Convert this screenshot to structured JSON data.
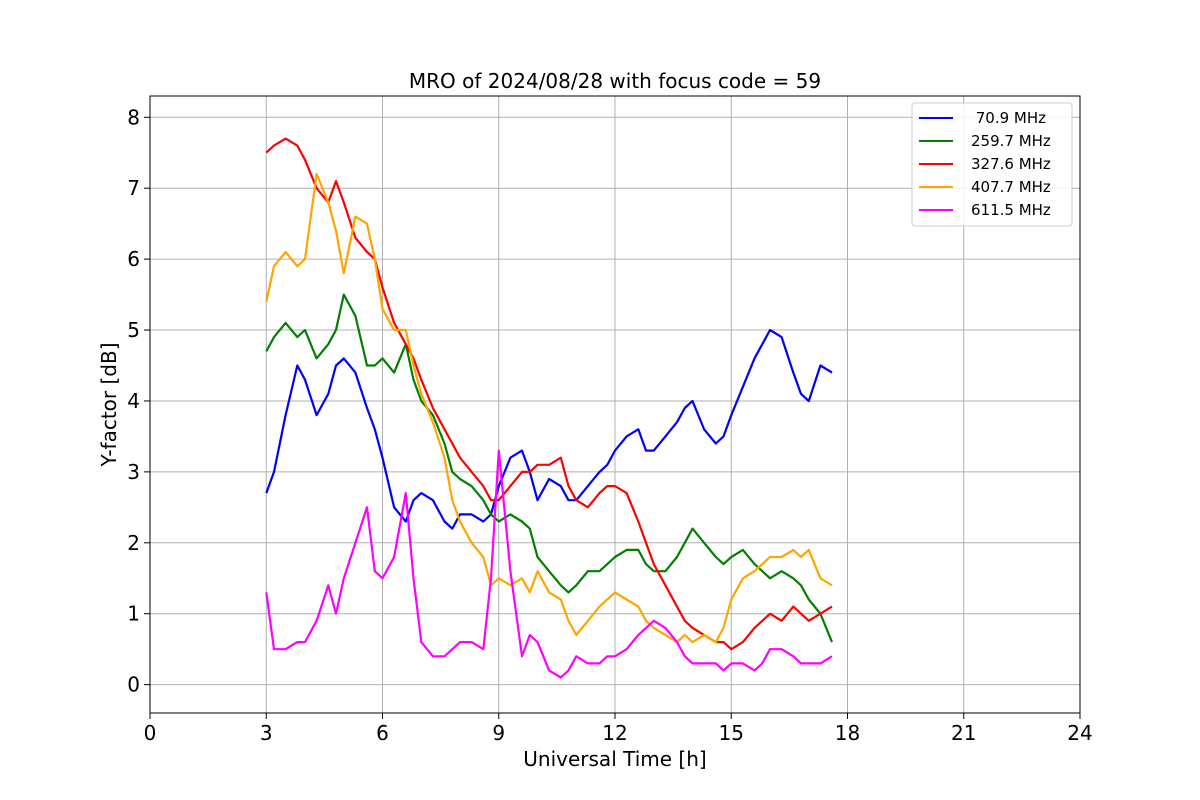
{
  "chart_data": {
    "type": "line",
    "title": "MRO of 2024/08/28 with focus code = 59",
    "xlabel": "Universal Time [h]",
    "ylabel": "Y-factor [dB]",
    "xlim": [
      0,
      24
    ],
    "ylim": [
      -0.4,
      8.3
    ],
    "xticks": [
      0,
      3,
      6,
      9,
      12,
      15,
      18,
      21,
      24
    ],
    "yticks": [
      0,
      1,
      2,
      3,
      4,
      5,
      6,
      7,
      8
    ],
    "grid": true,
    "legend_position": "top-right",
    "series": [
      {
        "name": " 70.9 MHz",
        "color": "#0000ff",
        "x": [
          3.0,
          3.2,
          3.5,
          3.8,
          4.0,
          4.3,
          4.6,
          4.8,
          5.0,
          5.3,
          5.6,
          5.8,
          6.0,
          6.3,
          6.6,
          6.8,
          7.0,
          7.3,
          7.6,
          7.8,
          8.0,
          8.3,
          8.6,
          8.8,
          9.0,
          9.3,
          9.6,
          9.8,
          10.0,
          10.3,
          10.6,
          10.8,
          11.0,
          11.3,
          11.6,
          11.8,
          12.0,
          12.3,
          12.6,
          12.8,
          13.0,
          13.3,
          13.6,
          13.8,
          14.0,
          14.3,
          14.6,
          14.8,
          15.0,
          15.3,
          15.6,
          15.8,
          16.0,
          16.3,
          16.6,
          16.8,
          17.0,
          17.3,
          17.6
        ],
        "y": [
          2.7,
          3.0,
          3.8,
          4.5,
          4.3,
          3.8,
          4.1,
          4.5,
          4.6,
          4.4,
          3.9,
          3.6,
          3.2,
          2.5,
          2.3,
          2.6,
          2.7,
          2.6,
          2.3,
          2.2,
          2.4,
          2.4,
          2.3,
          2.4,
          2.8,
          3.2,
          3.3,
          3.0,
          2.6,
          2.9,
          2.8,
          2.6,
          2.6,
          2.8,
          3.0,
          3.1,
          3.3,
          3.5,
          3.6,
          3.3,
          3.3,
          3.5,
          3.7,
          3.9,
          4.0,
          3.6,
          3.4,
          3.5,
          3.8,
          4.2,
          4.6,
          4.8,
          5.0,
          4.9,
          4.4,
          4.1,
          4.0,
          4.5,
          4.4
        ]
      },
      {
        "name": "259.7 MHz",
        "color": "#008000",
        "x": [
          3.0,
          3.2,
          3.5,
          3.8,
          4.0,
          4.3,
          4.6,
          4.8,
          5.0,
          5.3,
          5.6,
          5.8,
          6.0,
          6.3,
          6.6,
          6.8,
          7.0,
          7.3,
          7.6,
          7.8,
          8.0,
          8.3,
          8.6,
          8.8,
          9.0,
          9.3,
          9.6,
          9.8,
          10.0,
          10.3,
          10.6,
          10.8,
          11.0,
          11.3,
          11.6,
          11.8,
          12.0,
          12.3,
          12.6,
          12.8,
          13.0,
          13.3,
          13.6,
          13.8,
          14.0,
          14.3,
          14.6,
          14.8,
          15.0,
          15.3,
          15.6,
          15.8,
          16.0,
          16.3,
          16.6,
          16.8,
          17.0,
          17.3,
          17.6
        ],
        "y": [
          4.7,
          4.9,
          5.1,
          4.9,
          5.0,
          4.6,
          4.8,
          5.0,
          5.5,
          5.2,
          4.5,
          4.5,
          4.6,
          4.4,
          4.8,
          4.3,
          4.0,
          3.8,
          3.4,
          3.0,
          2.9,
          2.8,
          2.6,
          2.4,
          2.3,
          2.4,
          2.3,
          2.2,
          1.8,
          1.6,
          1.4,
          1.3,
          1.4,
          1.6,
          1.6,
          1.7,
          1.8,
          1.9,
          1.9,
          1.7,
          1.6,
          1.6,
          1.8,
          2.0,
          2.2,
          2.0,
          1.8,
          1.7,
          1.8,
          1.9,
          1.7,
          1.6,
          1.5,
          1.6,
          1.5,
          1.4,
          1.2,
          1.0,
          0.6
        ]
      },
      {
        "name": "327.6 MHz",
        "color": "#ff0000",
        "x": [
          3.0,
          3.2,
          3.5,
          3.8,
          4.0,
          4.3,
          4.6,
          4.8,
          5.0,
          5.3,
          5.6,
          5.8,
          6.0,
          6.3,
          6.6,
          6.8,
          7.0,
          7.3,
          7.6,
          7.8,
          8.0,
          8.3,
          8.6,
          8.8,
          9.0,
          9.3,
          9.6,
          9.8,
          10.0,
          10.3,
          10.6,
          10.8,
          11.0,
          11.3,
          11.6,
          11.8,
          12.0,
          12.3,
          12.6,
          12.8,
          13.0,
          13.3,
          13.6,
          13.8,
          14.0,
          14.3,
          14.6,
          14.8,
          15.0,
          15.3,
          15.6,
          15.8,
          16.0,
          16.3,
          16.6,
          16.8,
          17.0,
          17.3,
          17.6
        ],
        "y": [
          7.5,
          7.6,
          7.7,
          7.6,
          7.4,
          7.0,
          6.8,
          7.1,
          6.8,
          6.3,
          6.1,
          6.0,
          5.6,
          5.1,
          4.8,
          4.6,
          4.3,
          3.9,
          3.6,
          3.4,
          3.2,
          3.0,
          2.8,
          2.6,
          2.6,
          2.8,
          3.0,
          3.0,
          3.1,
          3.1,
          3.2,
          2.8,
          2.6,
          2.5,
          2.7,
          2.8,
          2.8,
          2.7,
          2.3,
          2.0,
          1.7,
          1.4,
          1.1,
          0.9,
          0.8,
          0.7,
          0.6,
          0.6,
          0.5,
          0.6,
          0.8,
          0.9,
          1.0,
          0.9,
          1.1,
          1.0,
          0.9,
          1.0,
          1.1
        ]
      },
      {
        "name": "407.7 MHz",
        "color": "#ffa500",
        "x": [
          3.0,
          3.2,
          3.5,
          3.8,
          4.0,
          4.3,
          4.6,
          4.8,
          5.0,
          5.3,
          5.6,
          5.8,
          6.0,
          6.3,
          6.6,
          6.8,
          7.0,
          7.3,
          7.6,
          7.8,
          8.0,
          8.3,
          8.6,
          8.8,
          9.0,
          9.3,
          9.6,
          9.8,
          10.0,
          10.3,
          10.6,
          10.8,
          11.0,
          11.3,
          11.6,
          11.8,
          12.0,
          12.3,
          12.6,
          12.8,
          13.0,
          13.3,
          13.6,
          13.8,
          14.0,
          14.3,
          14.6,
          14.8,
          15.0,
          15.3,
          15.6,
          15.8,
          16.0,
          16.3,
          16.6,
          16.8,
          17.0,
          17.3,
          17.6
        ],
        "y": [
          5.4,
          5.9,
          6.1,
          5.9,
          6.0,
          7.2,
          6.8,
          6.4,
          5.8,
          6.6,
          6.5,
          6.0,
          5.3,
          5.0,
          5.0,
          4.5,
          4.1,
          3.7,
          3.2,
          2.6,
          2.3,
          2.0,
          1.8,
          1.4,
          1.5,
          1.4,
          1.5,
          1.3,
          1.6,
          1.3,
          1.2,
          0.9,
          0.7,
          0.9,
          1.1,
          1.2,
          1.3,
          1.2,
          1.1,
          0.9,
          0.8,
          0.7,
          0.6,
          0.7,
          0.6,
          0.7,
          0.6,
          0.8,
          1.2,
          1.5,
          1.6,
          1.7,
          1.8,
          1.8,
          1.9,
          1.8,
          1.9,
          1.5,
          1.4
        ]
      },
      {
        "name": "611.5 MHz",
        "color": "#ff00ff",
        "x": [
          3.0,
          3.2,
          3.5,
          3.8,
          4.0,
          4.3,
          4.6,
          4.8,
          5.0,
          5.3,
          5.6,
          5.8,
          6.0,
          6.3,
          6.6,
          6.8,
          7.0,
          7.3,
          7.6,
          7.8,
          8.0,
          8.3,
          8.6,
          8.8,
          9.0,
          9.3,
          9.6,
          9.8,
          10.0,
          10.3,
          10.6,
          10.8,
          11.0,
          11.3,
          11.6,
          11.8,
          12.0,
          12.3,
          12.6,
          12.8,
          13.0,
          13.3,
          13.6,
          13.8,
          14.0,
          14.3,
          14.6,
          14.8,
          15.0,
          15.3,
          15.6,
          15.8,
          16.0,
          16.3,
          16.6,
          16.8,
          17.0,
          17.3,
          17.6
        ],
        "y": [
          1.3,
          0.5,
          0.5,
          0.6,
          0.6,
          0.9,
          1.4,
          1.0,
          1.5,
          2.0,
          2.5,
          1.6,
          1.5,
          1.8,
          2.7,
          1.5,
          0.6,
          0.4,
          0.4,
          0.5,
          0.6,
          0.6,
          0.5,
          1.5,
          3.3,
          1.6,
          0.4,
          0.7,
          0.6,
          0.2,
          0.1,
          0.2,
          0.4,
          0.3,
          0.3,
          0.4,
          0.4,
          0.5,
          0.7,
          0.8,
          0.9,
          0.8,
          0.6,
          0.4,
          0.3,
          0.3,
          0.3,
          0.2,
          0.3,
          0.3,
          0.2,
          0.3,
          0.5,
          0.5,
          0.4,
          0.3,
          0.3,
          0.3,
          0.4
        ]
      }
    ]
  }
}
